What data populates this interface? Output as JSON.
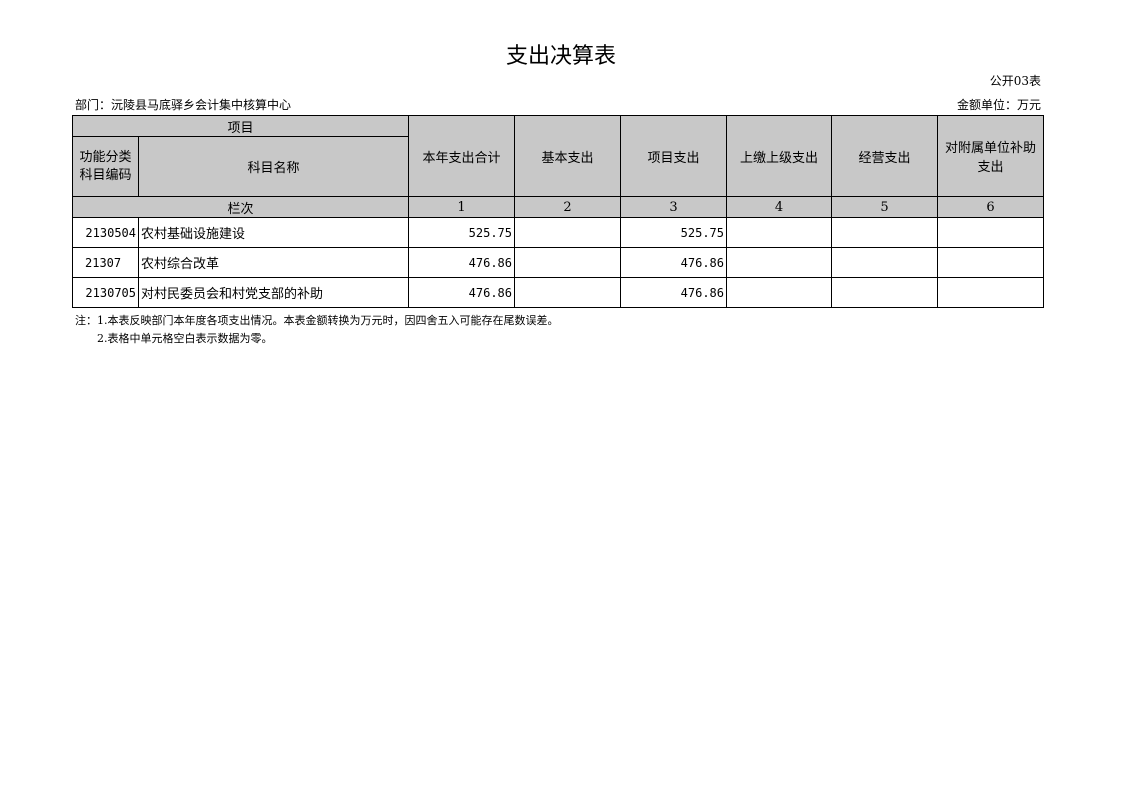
{
  "title": "支出决算表",
  "table_code": "公开03表",
  "department": "部门：沅陵县马底驿乡会计集中核算中心",
  "unit": "金额单位：万元",
  "header": {
    "project": "项目",
    "code_label": "功能分类科目编码",
    "name_label": "科目名称",
    "columns": [
      "本年支出合计",
      "基本支出",
      "项目支出",
      "上缴上级支出",
      "经营支出",
      "对附属单位补助支出"
    ],
    "row_index_label": "栏次",
    "column_numbers": [
      "1",
      "2",
      "3",
      "4",
      "5",
      "6"
    ]
  },
  "rows": [
    {
      "code": "2130504",
      "name": "农村基础设施建设",
      "values": [
        "525.75",
        "",
        "525.75",
        "",
        "",
        ""
      ]
    },
    {
      "code": "21307",
      "name": "农村综合改革",
      "values": [
        "476.86",
        "",
        "476.86",
        "",
        "",
        ""
      ]
    },
    {
      "code": "2130705",
      "name": "对村民委员会和村党支部的补助",
      "values": [
        "476.86",
        "",
        "476.86",
        "",
        "",
        ""
      ]
    }
  ],
  "notes": [
    "注：1.本表反映部门本年度各项支出情况。本表金额转换为万元时，因四舍五入可能存在尾数误差。",
    "2.表格中单元格空白表示数据为零。"
  ]
}
